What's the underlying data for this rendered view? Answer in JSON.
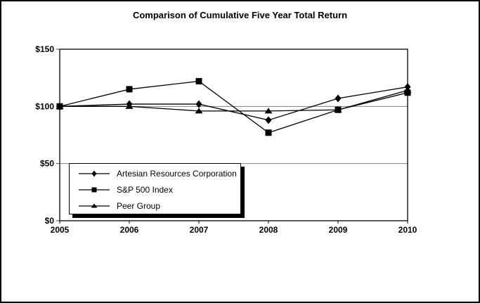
{
  "chart_data": {
    "type": "line",
    "title": "Comparison of Cumulative Five Year Total Return",
    "x": [
      "2005",
      "2006",
      "2007",
      "2008",
      "2009",
      "2010"
    ],
    "xlabel": "",
    "ylabel": "",
    "ylim": [
      0,
      150
    ],
    "yticks": [
      0,
      50,
      100,
      150
    ],
    "ytick_labels": [
      "$0",
      "$50",
      "$100",
      "$150"
    ],
    "grid": "horizontal gridlines at $50 and $100",
    "legend_position": "inside bottom-left, boxed with drop shadow",
    "series": [
      {
        "name": "Artesian Resources Corporation",
        "marker": "diamond",
        "color": "#000000",
        "values": [
          100,
          102,
          102,
          88,
          107,
          117
        ]
      },
      {
        "name": "S&P 500 Index",
        "marker": "square",
        "color": "#000000",
        "values": [
          100,
          115,
          122,
          77,
          97,
          112
        ]
      },
      {
        "name": "Peer Group",
        "marker": "triangle",
        "color": "#000000",
        "values": [
          100,
          100,
          96,
          96,
          97,
          114
        ]
      }
    ]
  },
  "colors": {
    "line": "#000000",
    "gridline": "#808080",
    "plot_border": "#000000",
    "background": "#ffffff",
    "outer_border": "#000000",
    "legend_shadow": "#000000"
  }
}
